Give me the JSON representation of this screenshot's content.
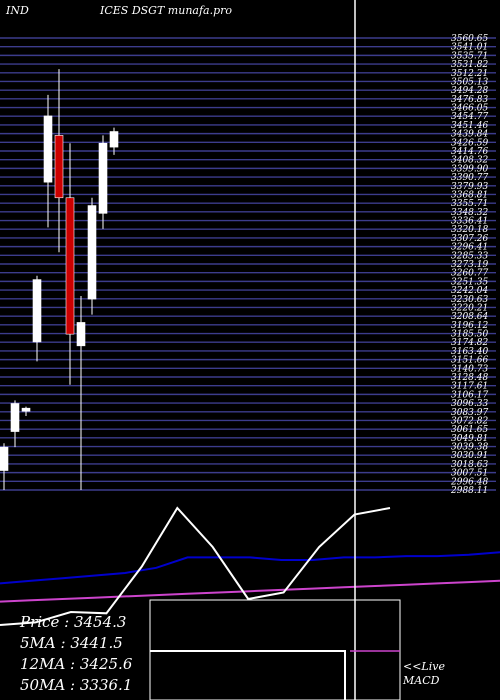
{
  "header": {
    "left": "IND",
    "right": "ICES DSGT munafa.pro"
  },
  "stats": [
    {
      "label": "Price",
      "value": "3454.3"
    },
    {
      "label": "5MA",
      "value": "3441.5"
    },
    {
      "label": "12MA",
      "value": "3425.6"
    },
    {
      "label": "50MA",
      "value": "3336.1"
    }
  ],
  "macd_label": {
    "line1": "<<Live",
    "line2": "MACD"
  },
  "colors": {
    "background": "#000000",
    "gridline": "#3c3c8c",
    "bull": "#ffffff",
    "bear": "#cc0000",
    "ma_fast": "#0000cc",
    "ma_slow": "#cc44cc",
    "white_line": "#ffffff"
  },
  "chart_data": {
    "type": "candlestick",
    "price_ticks": [
      "3560.65",
      "3541.01",
      "3535.71",
      "3531.82",
      "3512.21",
      "3505.13",
      "3494.28",
      "3476.83",
      "3466.05",
      "3454.77",
      "3451.46",
      "3439.84",
      "3426.59",
      "3414.76",
      "3408.32",
      "3399.90",
      "3390.77",
      "3379.93",
      "3368.81",
      "3355.71",
      "3348.32",
      "3336.41",
      "3320.18",
      "3307.26",
      "3296.41",
      "3285.33",
      "3273.19",
      "3260.77",
      "3251.35",
      "3242.04",
      "3230.63",
      "3220.21",
      "3208.64",
      "3196.12",
      "3185.50",
      "3174.82",
      "3163.40",
      "3151.66",
      "3140.73",
      "3128.48",
      "3117.61",
      "3106.17",
      "3096.33",
      "3083.97",
      "3072.82",
      "3061.65",
      "3049.81",
      "3039.38",
      "3030.91",
      "3018.63",
      "3007.51",
      "2996.48",
      "2988.11"
    ],
    "ylim": [
      2985,
      3565
    ],
    "candles": [
      {
        "open": 3010,
        "high": 3045,
        "low": 2985,
        "close": 3040
      },
      {
        "open": 3060,
        "high": 3100,
        "low": 3040,
        "close": 3096
      },
      {
        "open": 3086,
        "high": 3092,
        "low": 3080,
        "close": 3090
      },
      {
        "open": 3175,
        "high": 3260,
        "low": 3150,
        "close": 3255
      },
      {
        "open": 3380,
        "high": 3492,
        "low": 3322,
        "close": 3465
      },
      {
        "open": 3440,
        "high": 3525,
        "low": 3290,
        "close": 3360
      },
      {
        "open": 3360,
        "high": 3430,
        "low": 3120,
        "close": 3185
      },
      {
        "open": 3170,
        "high": 3234,
        "low": 2985,
        "close": 3200
      },
      {
        "open": 3230,
        "high": 3360,
        "low": 3210,
        "close": 3350
      },
      {
        "open": 3340,
        "high": 3440,
        "low": 3320,
        "close": 3430
      },
      {
        "open": 3425,
        "high": 3450,
        "low": 3415,
        "close": 3445
      }
    ],
    "volume_line": [
      0,
      2,
      10,
      9,
      45,
      90,
      60,
      20,
      25,
      60,
      85,
      90
    ],
    "ma_fast_line": [
      32,
      34,
      36,
      38,
      40,
      44,
      52,
      52,
      52,
      50,
      50,
      52,
      52,
      53,
      53,
      54,
      56
    ],
    "ma_slow_line": [
      18,
      19,
      20,
      21,
      22,
      23,
      24,
      25,
      26,
      27,
      28,
      29,
      30,
      31,
      32,
      33,
      34
    ]
  }
}
